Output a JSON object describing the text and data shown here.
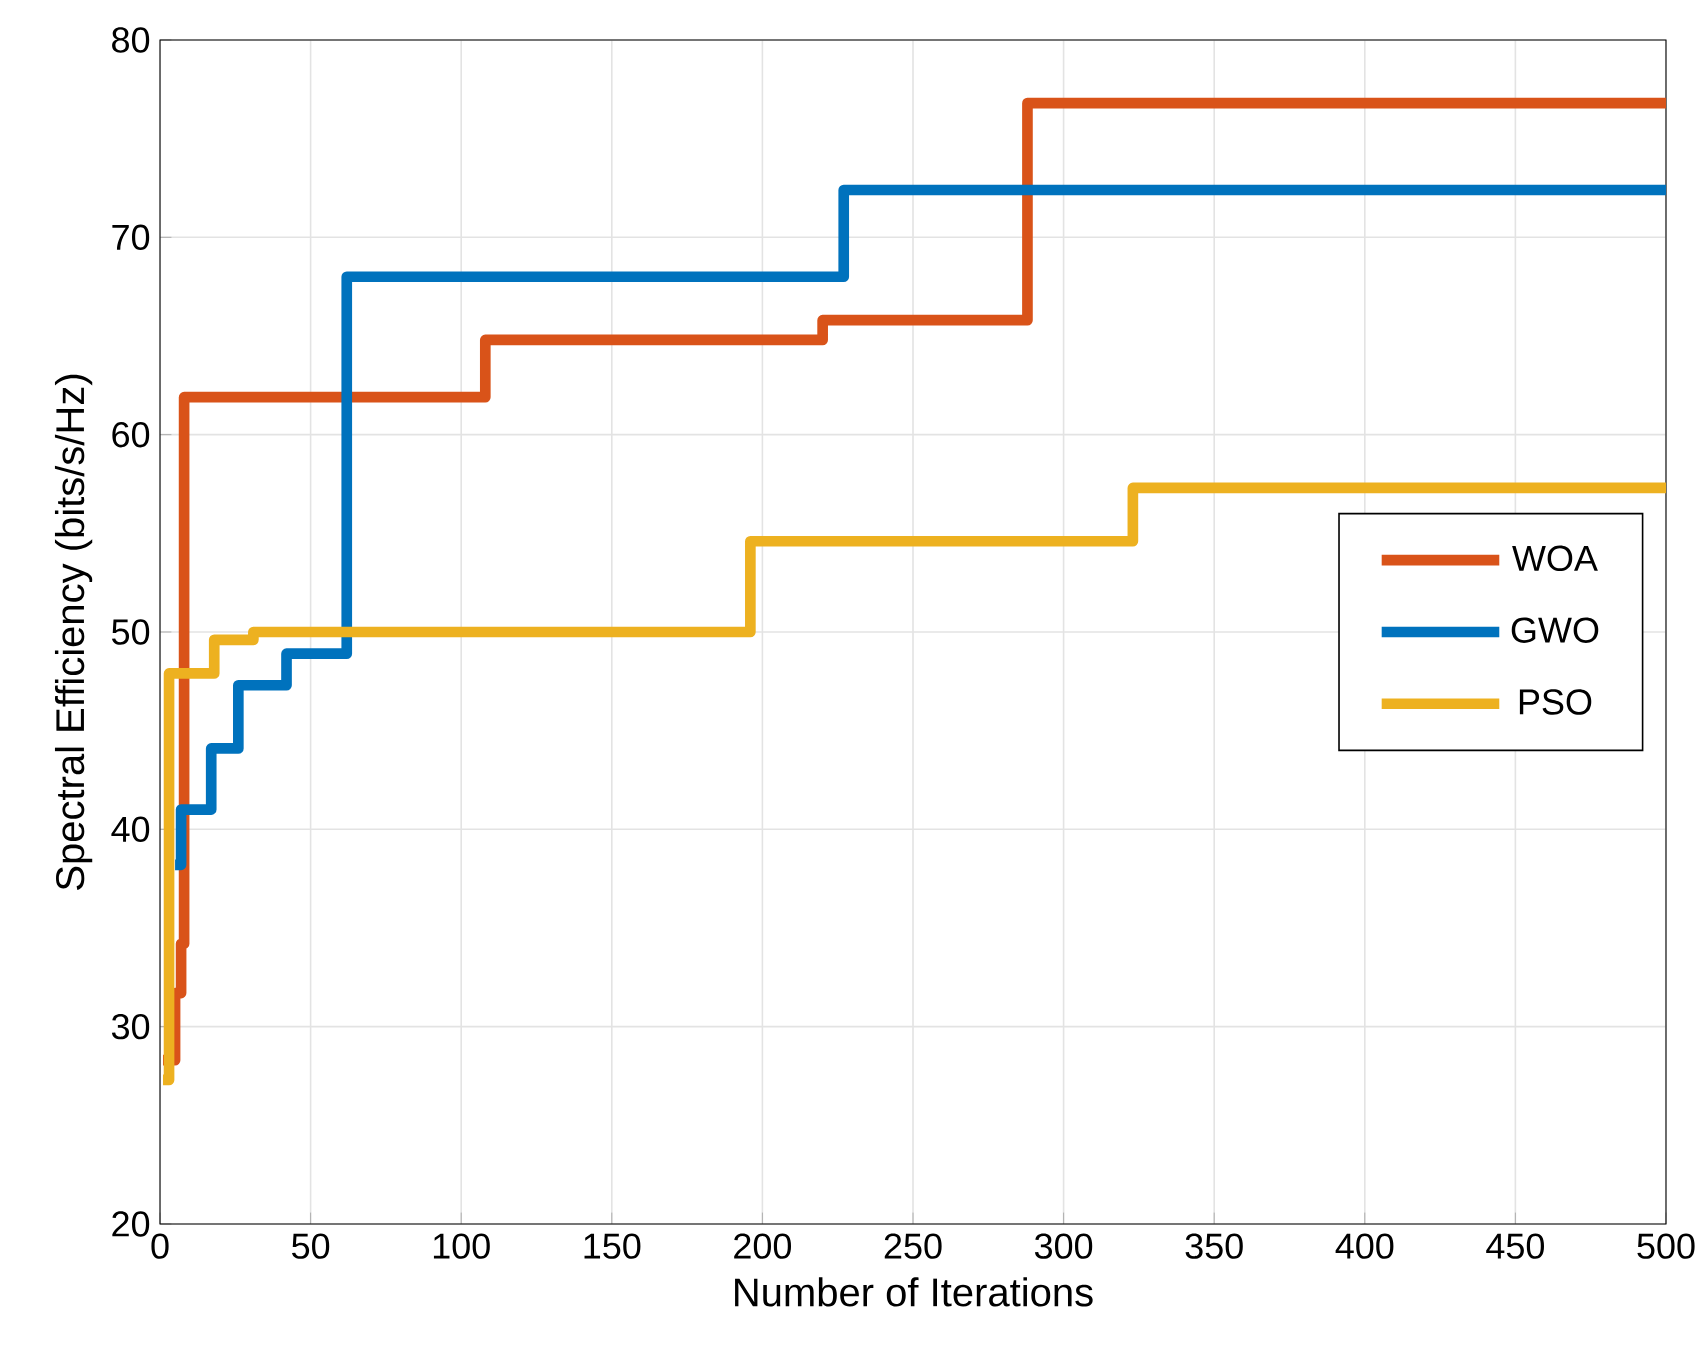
{
  "chart_data": {
    "type": "step",
    "xlabel": "Number of Iterations",
    "ylabel": "Spectral Efficiency (bits/s/Hz)",
    "xlim": [
      0,
      500
    ],
    "ylim": [
      20,
      80
    ],
    "xticks": [
      0,
      50,
      100,
      150,
      200,
      250,
      300,
      350,
      400,
      450,
      500
    ],
    "yticks": [
      20,
      30,
      40,
      50,
      60,
      70,
      80
    ],
    "grid": true,
    "legend": "right",
    "line_style": "solid",
    "marker": "none",
    "series": [
      {
        "name": "WOA",
        "color": "#d95319",
        "x": [
          1,
          5,
          7,
          8,
          108,
          220,
          288,
          500
        ],
        "values": [
          28.3,
          31.7,
          34.2,
          61.9,
          64.8,
          65.8,
          76.8,
          76.8
        ]
      },
      {
        "name": "GWO",
        "color": "#0072bd",
        "x": [
          5,
          7,
          17,
          26,
          42,
          62,
          227,
          500
        ],
        "values": [
          38.2,
          41.0,
          44.1,
          47.3,
          48.9,
          68.0,
          72.4,
          72.4
        ]
      },
      {
        "name": "PSO",
        "color": "#edb120",
        "x": [
          1,
          3,
          18,
          31,
          196,
          323,
          500
        ],
        "values": [
          27.3,
          47.9,
          49.6,
          50.0,
          54.6,
          57.3,
          57.3
        ]
      }
    ]
  }
}
